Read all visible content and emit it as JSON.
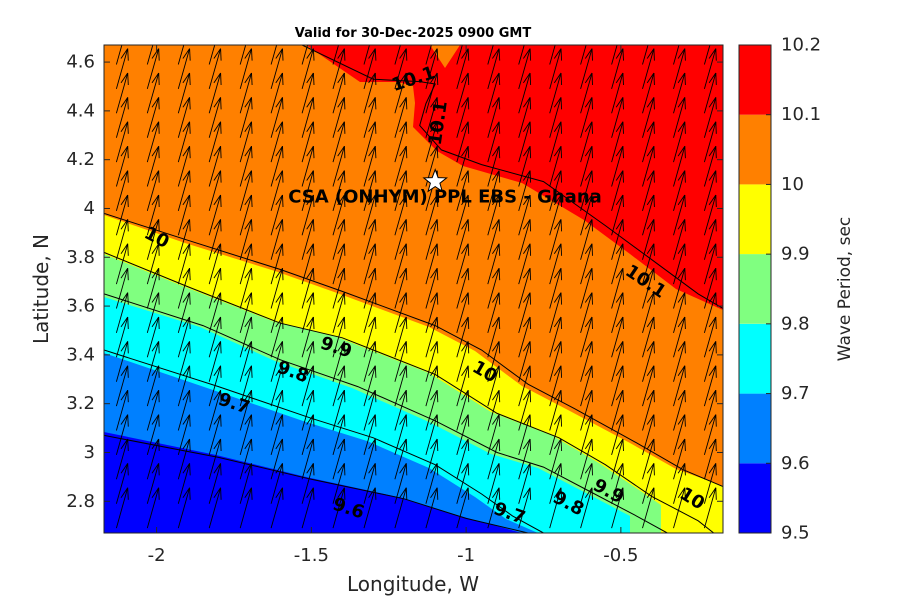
{
  "chart_data": {
    "type": "contour",
    "title": "Valid for 30-Dec-2025 0900 GMT",
    "xlabel": "Longitude, W",
    "ylabel": "Latitude, N",
    "xlim": [
      -2.17,
      -0.17
    ],
    "ylim": [
      2.67,
      4.67
    ],
    "xticks": [
      -2,
      -1.5,
      -1,
      -0.5
    ],
    "xtick_labels": [
      "-2",
      "-1.5",
      "-1",
      "-0.5"
    ],
    "yticks": [
      2.8,
      3,
      3.2,
      3.4,
      3.6,
      3.8,
      4,
      4.2,
      4.4,
      4.6
    ],
    "ytick_labels": [
      "2.8",
      "3",
      "3.2",
      "3.4",
      "3.6",
      "3.8",
      "4",
      "4.2",
      "4.4",
      "4.6"
    ],
    "colorbar": {
      "label": "Wave Period, sec",
      "levels": [
        9.5,
        9.6,
        9.7,
        9.8,
        9.9,
        10,
        10.1,
        10.2
      ],
      "tick_labels": [
        "9.5",
        "9.6",
        "9.7",
        "9.8",
        "9.9",
        "10",
        "10.1",
        "10.2"
      ],
      "colors": [
        "#0000ff",
        "#0080ff",
        "#00ffff",
        "#80ff80",
        "#ffff00",
        "#ff8000",
        "#ff0000"
      ]
    },
    "contour_lines": [
      {
        "level": "9.6",
        "points": [
          [
            -2.17,
            3.07
          ],
          [
            -1.8,
            2.98
          ],
          [
            -1.5,
            2.89
          ],
          [
            -1.2,
            2.81
          ],
          [
            -1.0,
            2.73
          ],
          [
            -0.8,
            2.67
          ]
        ]
      },
      {
        "level": "9.7",
        "points": [
          [
            -2.17,
            3.42
          ],
          [
            -1.8,
            3.27
          ],
          [
            -1.5,
            3.14
          ],
          [
            -1.3,
            3.06
          ],
          [
            -1.1,
            2.95
          ],
          [
            -0.95,
            2.83
          ],
          [
            -0.85,
            2.74
          ],
          [
            -0.75,
            2.67
          ]
        ]
      },
      {
        "level": "9.8",
        "points": [
          [
            -2.17,
            3.65
          ],
          [
            -1.85,
            3.52
          ],
          [
            -1.6,
            3.38
          ],
          [
            -1.35,
            3.27
          ],
          [
            -1.1,
            3.13
          ],
          [
            -0.9,
            3.0
          ],
          [
            -0.75,
            2.94
          ],
          [
            -0.6,
            2.84
          ],
          [
            -0.45,
            2.74
          ],
          [
            -0.35,
            2.67
          ]
        ]
      },
      {
        "level": "9.9",
        "points": [
          [
            -2.17,
            3.82
          ],
          [
            -1.9,
            3.68
          ],
          [
            -1.6,
            3.53
          ],
          [
            -1.4,
            3.47
          ],
          [
            -1.1,
            3.32
          ],
          [
            -0.9,
            3.16
          ],
          [
            -0.7,
            3.06
          ],
          [
            -0.55,
            2.95
          ],
          [
            -0.4,
            2.82
          ],
          [
            -0.25,
            2.72
          ],
          [
            -0.2,
            2.67
          ]
        ]
      },
      {
        "level": "10",
        "points": [
          [
            -2.17,
            3.98
          ],
          [
            -1.9,
            3.87
          ],
          [
            -1.6,
            3.75
          ],
          [
            -1.4,
            3.66
          ],
          [
            -1.1,
            3.52
          ],
          [
            -0.95,
            3.42
          ],
          [
            -0.8,
            3.28
          ],
          [
            -0.65,
            3.18
          ],
          [
            -0.45,
            3.04
          ],
          [
            -0.3,
            2.93
          ],
          [
            -0.17,
            2.86
          ]
        ]
      },
      {
        "level": "10.1",
        "points": [
          [
            -1.53,
            4.67
          ],
          [
            -1.3,
            4.53
          ],
          [
            -1.15,
            4.52
          ],
          [
            -1.1,
            4.51
          ],
          [
            -1.13,
            4.43
          ],
          [
            -1.15,
            4.34
          ],
          [
            -1.08,
            4.24
          ],
          [
            -0.95,
            4.18
          ],
          [
            -0.75,
            4.11
          ],
          [
            -0.55,
            3.93
          ],
          [
            -0.4,
            3.79
          ],
          [
            -0.25,
            3.65
          ],
          [
            -0.17,
            3.59
          ]
        ]
      }
    ],
    "contour_labels": [
      {
        "text": "10",
        "x": -2.0,
        "y": 3.88,
        "angle": 28
      },
      {
        "text": "9.9",
        "x": -1.42,
        "y": 3.43,
        "angle": 18
      },
      {
        "text": "10",
        "x": -0.94,
        "y": 3.33,
        "angle": 30
      },
      {
        "text": "9.8",
        "x": -1.56,
        "y": 3.33,
        "angle": 20
      },
      {
        "text": "9.7",
        "x": -1.75,
        "y": 3.2,
        "angle": 18
      },
      {
        "text": "9.6",
        "x": -1.38,
        "y": 2.77,
        "angle": 18
      },
      {
        "text": "9.7",
        "x": -0.86,
        "y": 2.75,
        "angle": 20
      },
      {
        "text": "9.8",
        "x": -0.67,
        "y": 2.79,
        "angle": 28
      },
      {
        "text": "9.9",
        "x": -0.54,
        "y": 2.84,
        "angle": 28
      },
      {
        "text": "10",
        "x": -0.27,
        "y": 2.81,
        "angle": 32
      },
      {
        "text": "10.1",
        "x": -1.17,
        "y": 4.53,
        "angle": -18
      },
      {
        "text": "10.1",
        "x": -1.09,
        "y": 4.35,
        "angle": -82
      },
      {
        "text": "10.1",
        "x": -0.42,
        "y": 3.7,
        "angle": 34
      }
    ],
    "site": {
      "name": "CSA (ONHYM) PPL EBS  - Ghana",
      "lon": -1.1,
      "lat": 4.11
    },
    "vectors": {
      "x_start": -2.13,
      "x_step": 0.1,
      "y_start": 2.69,
      "y_step": 0.1
    }
  }
}
